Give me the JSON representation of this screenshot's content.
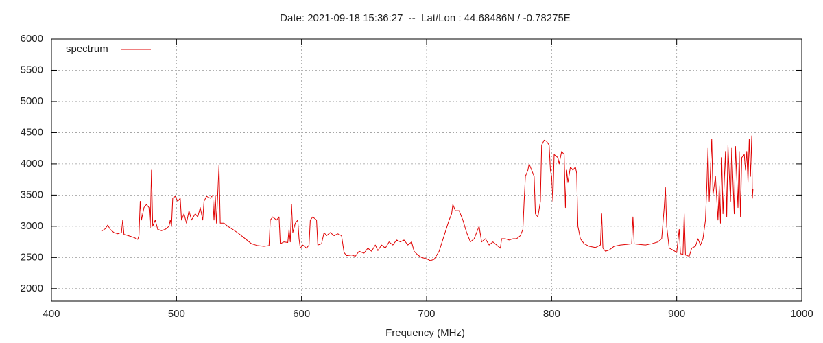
{
  "chart_data": {
    "type": "line",
    "title": "Date: 2021-09-18 15:36:27  --  Lat/Lon : 44.68486N / -0.78275E",
    "x_label": "Frequency (MHz)",
    "xlim": [
      400,
      1000
    ],
    "xticks": [
      400,
      500,
      600,
      700,
      800,
      900,
      1000
    ],
    "ylim": [
      1800,
      6000
    ],
    "yticks": [
      2000,
      2500,
      3000,
      3500,
      4000,
      4500,
      5000,
      5500,
      6000
    ],
    "grid": true,
    "legend": "top-left",
    "series": [
      {
        "name": "spectrum",
        "color": "#e00000",
        "x": [
          440,
          443,
          445,
          447,
          450,
          453,
          456,
          457,
          458,
          460,
          463,
          466,
          469,
          470,
          471,
          472,
          474,
          476,
          478,
          479,
          480,
          481,
          483,
          485,
          488,
          491,
          494,
          495,
          496,
          497,
          499,
          501,
          503,
          504,
          506,
          508,
          510,
          512,
          515,
          517,
          519,
          521,
          522,
          524,
          527,
          529,
          530,
          531,
          532,
          534,
          535,
          538,
          541,
          545,
          550,
          555,
          560,
          565,
          570,
          574,
          575,
          577,
          580,
          582,
          583,
          586,
          589,
          590,
          591,
          592,
          593,
          595,
          597,
          598,
          599,
          601,
          604,
          606,
          607,
          609,
          612,
          613,
          616,
          618,
          620,
          623,
          626,
          629,
          632,
          634,
          636,
          640,
          643,
          646,
          650,
          653,
          656,
          659,
          661,
          664,
          667,
          670,
          673,
          676,
          679,
          682,
          685,
          688,
          690,
          693,
          696,
          700,
          703,
          706,
          710,
          714,
          718,
          720,
          721,
          723,
          726,
          729,
          732,
          735,
          738,
          740,
          742,
          744,
          747,
          750,
          753,
          756,
          759,
          760,
          763,
          766,
          769,
          772,
          775,
          777,
          778,
          779,
          781,
          782,
          784,
          786,
          787,
          789,
          791,
          792,
          794,
          796,
          798,
          799,
          800,
          801,
          802,
          805,
          806,
          808,
          810,
          811,
          812,
          813,
          815,
          817,
          819,
          820,
          821,
          823,
          826,
          830,
          835,
          839,
          840,
          841,
          843,
          846,
          850,
          855,
          860,
          864,
          865,
          866,
          870,
          875,
          880,
          885,
          888,
          890,
          891,
          892,
          894,
          897,
          900,
          902,
          903,
          905,
          906,
          907,
          910,
          912,
          915,
          917,
          919,
          921,
          923,
          924,
          925,
          926,
          927,
          928,
          929,
          931,
          933,
          934,
          935,
          936,
          937,
          939,
          940,
          941,
          943,
          944,
          946,
          947,
          949,
          950,
          951,
          952,
          954,
          955,
          956,
          957,
          958,
          959,
          960,
          960.5,
          961
        ],
        "values": [
          2920,
          2960,
          3020,
          2950,
          2900,
          2880,
          2900,
          3100,
          2870,
          2860,
          2840,
          2820,
          2790,
          2850,
          3400,
          3100,
          3300,
          3350,
          3300,
          2980,
          3900,
          3000,
          3100,
          2950,
          2930,
          2950,
          3000,
          3100,
          3000,
          3450,
          3480,
          3400,
          3450,
          3100,
          3200,
          3050,
          3250,
          3100,
          3200,
          3150,
          3300,
          3100,
          3400,
          3480,
          3450,
          3500,
          3100,
          3500,
          3050,
          3980,
          3050,
          3050,
          3000,
          2950,
          2880,
          2800,
          2720,
          2690,
          2680,
          2690,
          3100,
          3150,
          3100,
          3150,
          2720,
          2750,
          2740,
          2950,
          2750,
          3350,
          2900,
          3050,
          3100,
          2800,
          2650,
          2700,
          2650,
          2700,
          3100,
          3150,
          3100,
          2700,
          2720,
          2900,
          2850,
          2900,
          2850,
          2880,
          2850,
          2580,
          2530,
          2540,
          2520,
          2600,
          2570,
          2650,
          2600,
          2700,
          2610,
          2700,
          2650,
          2750,
          2700,
          2780,
          2750,
          2780,
          2700,
          2750,
          2600,
          2540,
          2500,
          2480,
          2450,
          2470,
          2600,
          2850,
          3100,
          3200,
          3350,
          3250,
          3250,
          3100,
          2900,
          2750,
          2800,
          2900,
          3000,
          2750,
          2800,
          2700,
          2750,
          2700,
          2650,
          2800,
          2800,
          2780,
          2800,
          2800,
          2850,
          2950,
          3400,
          3800,
          3900,
          4000,
          3900,
          3800,
          3200,
          3150,
          3400,
          4300,
          4380,
          4360,
          4300,
          3900,
          3800,
          3400,
          4150,
          4100,
          4000,
          4200,
          4150,
          3300,
          3900,
          3700,
          3950,
          3900,
          3950,
          3850,
          3000,
          2800,
          2720,
          2680,
          2660,
          2700,
          3200,
          2650,
          2600,
          2620,
          2680,
          2700,
          2710,
          2720,
          3150,
          2720,
          2710,
          2700,
          2720,
          2750,
          2800,
          3300,
          3620,
          3000,
          2650,
          2620,
          2580,
          2950,
          2560,
          2550,
          3200,
          2540,
          2520,
          2650,
          2680,
          2800,
          2700,
          2800,
          3100,
          3600,
          4250,
          3400,
          3900,
          4400,
          3500,
          3800,
          3100,
          3650,
          3050,
          4100,
          3200,
          4200,
          3150,
          4300,
          3400,
          4250,
          3200,
          4280,
          3300,
          4200,
          3150,
          4100,
          4150,
          3900,
          4200,
          3700,
          4400,
          3800,
          4450,
          3450,
          3600
        ]
      }
    ]
  }
}
